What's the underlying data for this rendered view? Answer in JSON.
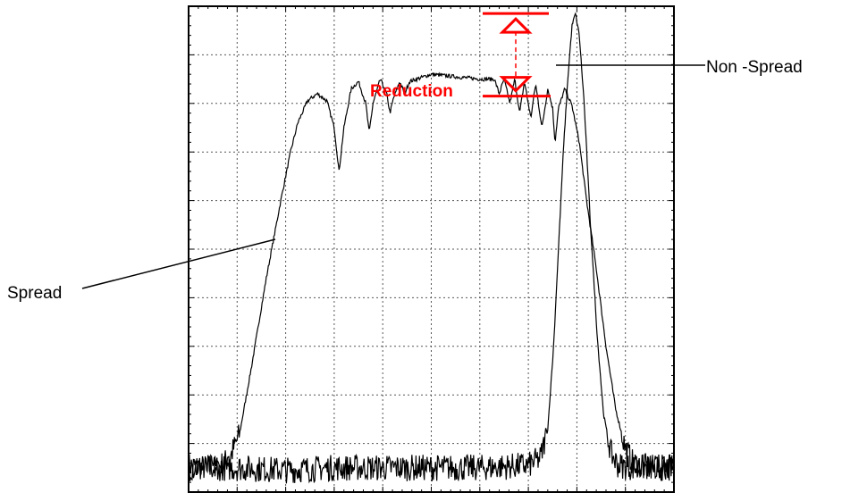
{
  "chart_data": {
    "type": "line",
    "title": "",
    "xlabel": "",
    "ylabel": "",
    "xlim": [
      0,
      10
    ],
    "ylim": [
      0,
      10
    ],
    "grid": true,
    "series": [
      {
        "name": "Spread",
        "color": "#000000",
        "points": [
          [
            0.0,
            0.55
          ],
          [
            0.3,
            0.5
          ],
          [
            0.6,
            0.5
          ],
          [
            0.85,
            0.7
          ],
          [
            1.05,
            1.2
          ],
          [
            1.3,
            2.6
          ],
          [
            1.6,
            4.4
          ],
          [
            1.9,
            6.0
          ],
          [
            2.1,
            7.0
          ],
          [
            2.25,
            7.6
          ],
          [
            2.45,
            8.05
          ],
          [
            2.65,
            8.2
          ],
          [
            2.85,
            8.05
          ],
          [
            3.0,
            7.5
          ],
          [
            3.1,
            6.6
          ],
          [
            3.2,
            7.5
          ],
          [
            3.35,
            8.3
          ],
          [
            3.5,
            8.45
          ],
          [
            3.65,
            8.0
          ],
          [
            3.72,
            7.4
          ],
          [
            3.8,
            8.0
          ],
          [
            3.95,
            8.5
          ],
          [
            4.08,
            8.2
          ],
          [
            4.15,
            7.8
          ],
          [
            4.22,
            8.1
          ],
          [
            4.35,
            8.45
          ],
          [
            4.45,
            8.2
          ],
          [
            4.55,
            8.45
          ],
          [
            4.7,
            8.5
          ],
          [
            5.0,
            8.6
          ],
          [
            5.5,
            8.55
          ],
          [
            6.0,
            8.5
          ],
          [
            6.3,
            8.5
          ],
          [
            6.4,
            8.2
          ],
          [
            6.5,
            8.5
          ],
          [
            6.62,
            8.0
          ],
          [
            6.72,
            8.5
          ],
          [
            6.82,
            7.8
          ],
          [
            6.92,
            8.45
          ],
          [
            7.05,
            7.7
          ],
          [
            7.15,
            8.4
          ],
          [
            7.28,
            7.5
          ],
          [
            7.4,
            8.3
          ],
          [
            7.5,
            7.9
          ],
          [
            7.55,
            7.2
          ],
          [
            7.62,
            7.9
          ],
          [
            7.75,
            8.3
          ],
          [
            7.9,
            7.95
          ],
          [
            8.05,
            7.2
          ],
          [
            8.2,
            6.0
          ],
          [
            8.4,
            4.6
          ],
          [
            8.6,
            3.0
          ],
          [
            8.8,
            1.7
          ],
          [
            9.0,
            0.9
          ],
          [
            9.15,
            0.6
          ],
          [
            9.5,
            0.5
          ],
          [
            10.0,
            0.5
          ]
        ]
      },
      {
        "name": "Non -Spread",
        "color": "#000000",
        "points": [
          [
            0.0,
            0.5
          ],
          [
            1.0,
            0.5
          ],
          [
            2.0,
            0.45
          ],
          [
            3.0,
            0.5
          ],
          [
            4.0,
            0.5
          ],
          [
            5.0,
            0.5
          ],
          [
            6.0,
            0.5
          ],
          [
            7.0,
            0.55
          ],
          [
            7.25,
            0.7
          ],
          [
            7.4,
            1.3
          ],
          [
            7.52,
            3.0
          ],
          [
            7.62,
            5.0
          ],
          [
            7.72,
            7.0
          ],
          [
            7.82,
            8.6
          ],
          [
            7.9,
            9.6
          ],
          [
            7.97,
            9.85
          ],
          [
            8.05,
            9.4
          ],
          [
            8.15,
            8.0
          ],
          [
            8.28,
            5.5
          ],
          [
            8.42,
            3.2
          ],
          [
            8.55,
            1.6
          ],
          [
            8.7,
            0.8
          ],
          [
            8.85,
            0.55
          ],
          [
            9.2,
            0.5
          ],
          [
            10.0,
            0.5
          ]
        ]
      }
    ],
    "annotations": {
      "reduction": "Reduction",
      "reduction_top_level": 9.85,
      "reduction_bottom_level": 8.15,
      "reduction_color": "#ff0000"
    }
  },
  "labels": {
    "spread": "Spread",
    "non_spread": "Non -Spread",
    "reduction": "Reduction"
  }
}
